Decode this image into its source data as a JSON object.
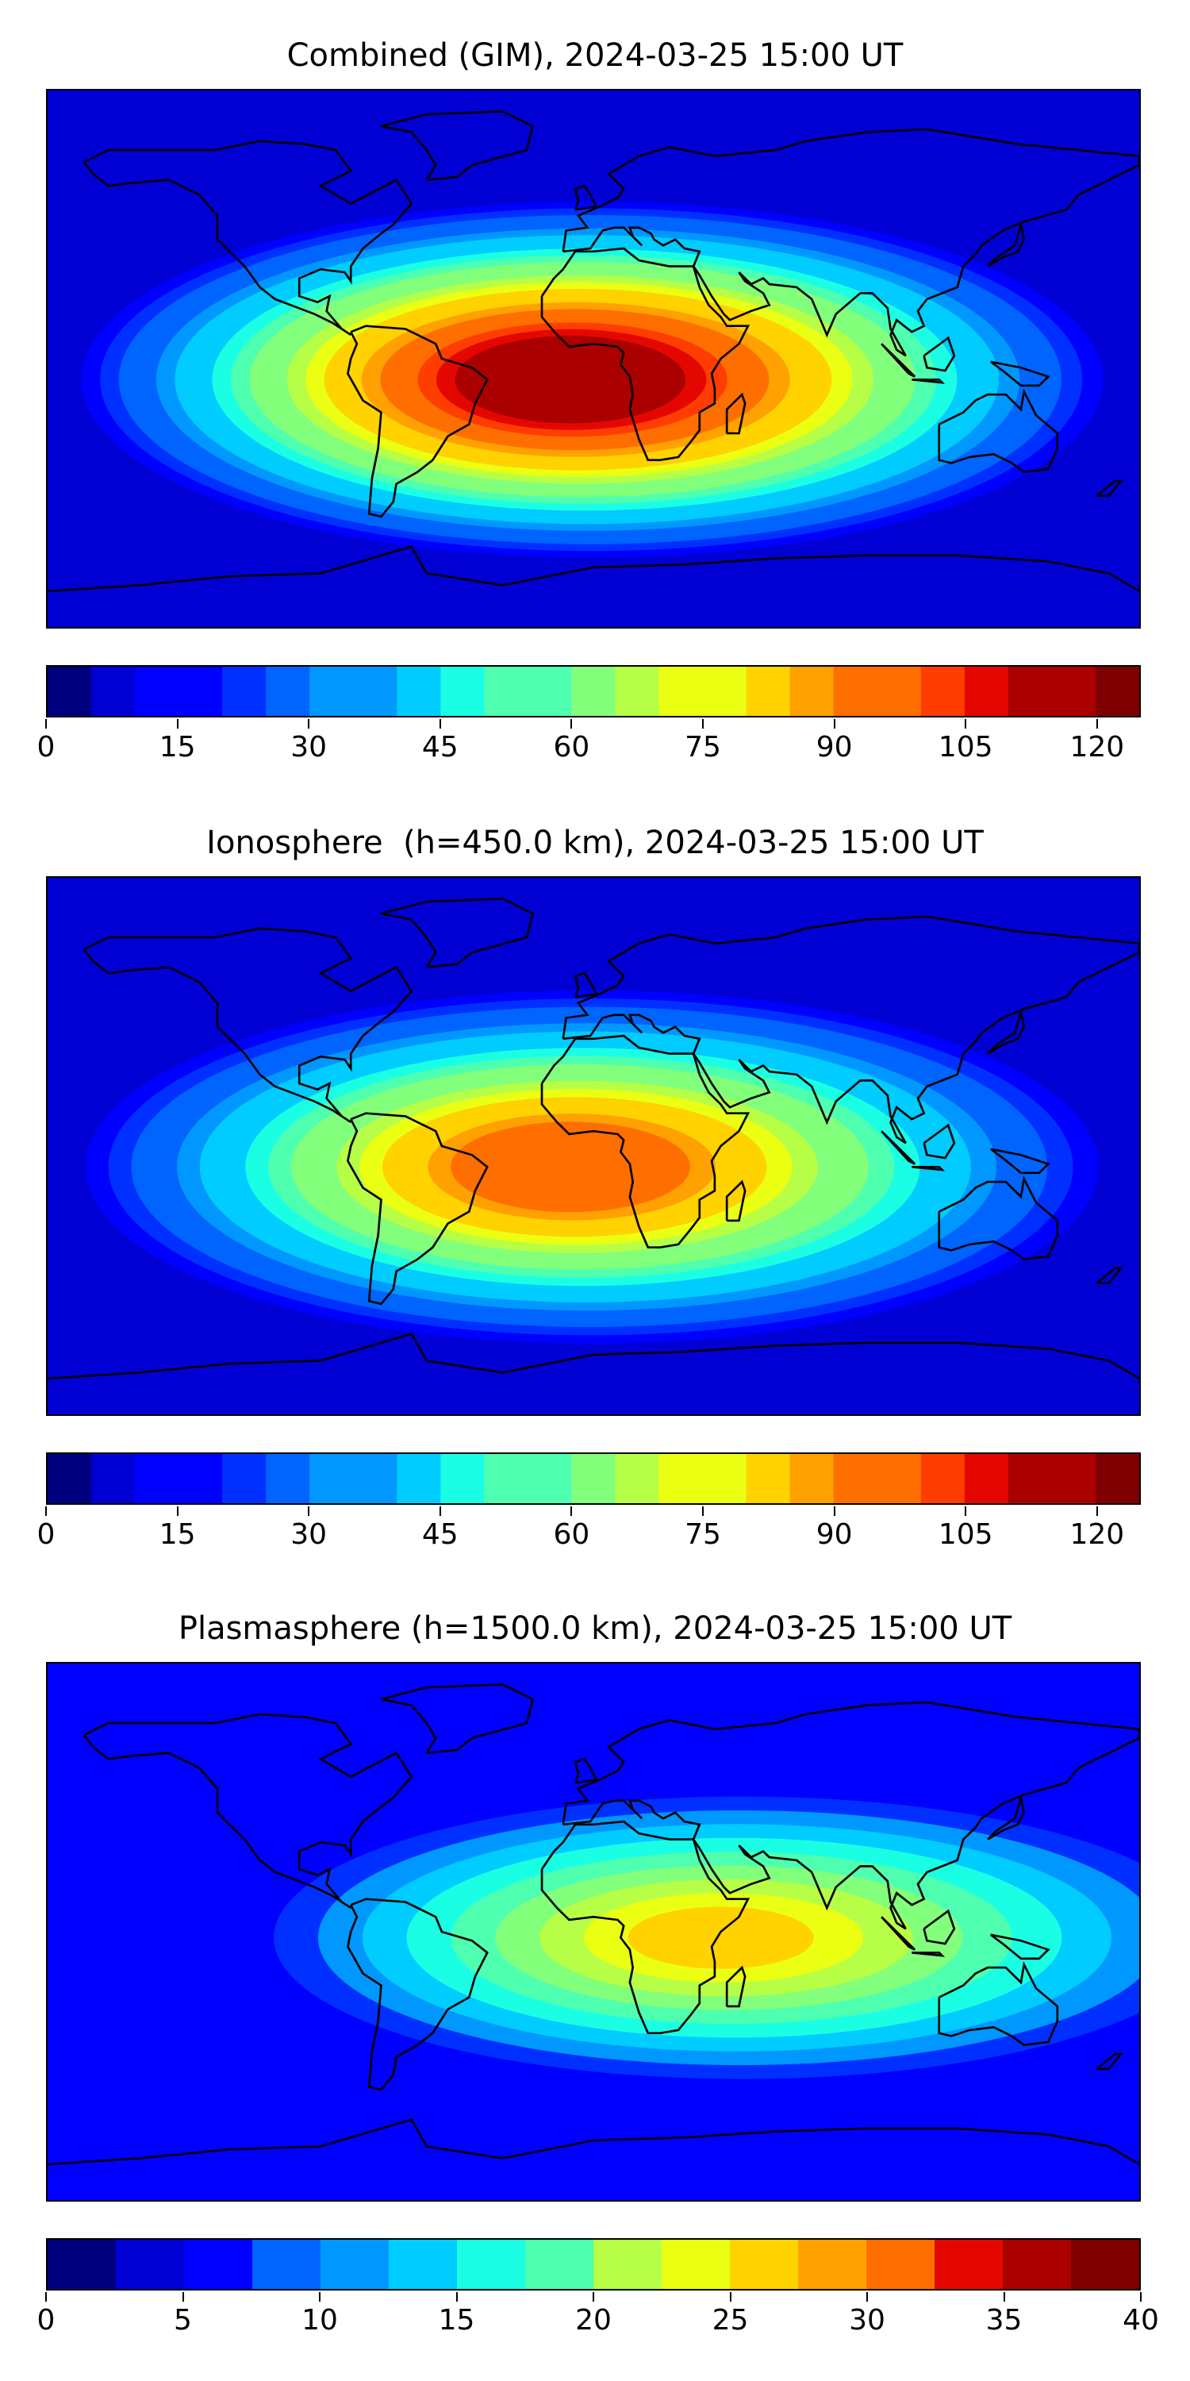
{
  "panels": [
    {
      "title": "Combined (GIM), 2024-03-25 15:00 UT",
      "colorbar": {
        "min": 0,
        "max": 125,
        "step": 5,
        "ticks": [
          "0",
          "15",
          "30",
          "45",
          "60",
          "75",
          "90",
          "105",
          "120"
        ],
        "tick_values": [
          0,
          15,
          30,
          45,
          60,
          75,
          90,
          105,
          120
        ]
      },
      "peak_level": 110
    },
    {
      "title": "Ionosphere  (h=450.0 km), 2024-03-25 15:00 UT",
      "colorbar": {
        "min": 0,
        "max": 125,
        "step": 5,
        "ticks": [
          "0",
          "15",
          "30",
          "45",
          "60",
          "75",
          "90",
          "105",
          "120"
        ],
        "tick_values": [
          0,
          15,
          30,
          45,
          60,
          75,
          90,
          105,
          120
        ]
      },
      "peak_level": 90
    },
    {
      "title": "Plasmasphere (h=1500.0 km), 2024-03-25 15:00 UT",
      "colorbar": {
        "min": 0,
        "max": 40,
        "step": 2.5,
        "ticks": [
          "0",
          "5",
          "10",
          "15",
          "20",
          "25",
          "30",
          "35",
          "40"
        ],
        "tick_values": [
          0,
          5,
          10,
          15,
          20,
          25,
          30,
          35,
          40
        ]
      },
      "peak_level": 22
    }
  ],
  "colormap": [
    "#00007f",
    "#0000d5",
    "#0000ff",
    "#0030ff",
    "#0064ff",
    "#0098ff",
    "#00ccff",
    "#1affe4",
    "#4effb0",
    "#82ff7b",
    "#b7ff47",
    "#ebff13",
    "#ffd200",
    "#ffa100",
    "#ff6f00",
    "#ff3d00",
    "#e40700",
    "#aa0000",
    "#7f0000"
  ]
}
